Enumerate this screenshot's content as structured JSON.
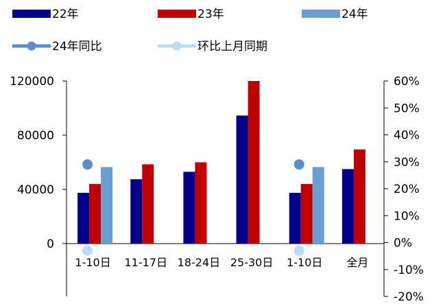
{
  "chart_data": {
    "type": "bar",
    "categories": [
      "1-10日",
      "11-17日",
      "18-24日",
      "25-30日",
      "1-10日",
      "全月"
    ],
    "series": [
      {
        "name": "22年",
        "kind": "bar",
        "axis": "left",
        "color": "#00008B",
        "values": [
          37500,
          47500,
          53000,
          94500,
          37500,
          55000
        ]
      },
      {
        "name": "23年",
        "kind": "bar",
        "axis": "left",
        "color": "#C00000",
        "values": [
          44000,
          58500,
          60000,
          120000,
          44000,
          69500
        ]
      },
      {
        "name": "24年",
        "kind": "bar",
        "axis": "left",
        "color": "#6A9FD4",
        "values": [
          56500,
          null,
          null,
          null,
          56500,
          null
        ]
      },
      {
        "name": "24年同比",
        "kind": "marker",
        "axis": "right",
        "color": "#5B8FC9",
        "values": [
          0.29,
          null,
          null,
          null,
          0.29,
          null
        ]
      },
      {
        "name": "环比上月同期",
        "kind": "marker",
        "axis": "right",
        "color": "#BCDDF5",
        "values": [
          -0.03,
          null,
          null,
          null,
          -0.03,
          null
        ]
      }
    ],
    "y_left": {
      "ylim": [
        0,
        120000
      ],
      "ticks": [
        "0",
        "40000",
        "80000",
        "120000"
      ],
      "tick_values": [
        0,
        40000,
        80000,
        120000
      ]
    },
    "y_right": {
      "ylim": [
        -0.2,
        0.6
      ],
      "ticks": [
        "-20%",
        "-10%",
        "0%",
        "10%",
        "20%",
        "30%",
        "40%",
        "50%",
        "60%"
      ],
      "tick_values": [
        -0.2,
        -0.1,
        0,
        0.1,
        0.2,
        0.3,
        0.4,
        0.5,
        0.6
      ]
    },
    "legend_placement": "top",
    "grid": false
  }
}
